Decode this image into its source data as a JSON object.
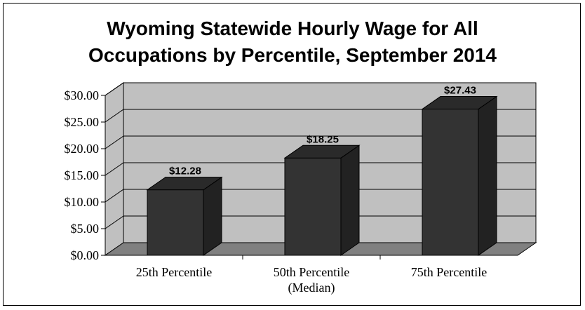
{
  "chart_data": {
    "type": "bar",
    "title_lines": [
      "Wyoming Statewide Hourly Wage for All",
      "Occupations by Percentile, September 2014"
    ],
    "categories": [
      [
        "25th Percentile"
      ],
      [
        "50th Percentile",
        "(Median)"
      ],
      [
        "75th Percentile"
      ]
    ],
    "values": [
      12.28,
      18.25,
      27.43
    ],
    "data_labels": [
      "$12.28",
      "$18.25",
      "$27.43"
    ],
    "yticks": [
      "$0.00",
      "$5.00",
      "$10.00",
      "$15.00",
      "$20.00",
      "$25.00",
      "$30.00"
    ],
    "ylim": [
      0,
      30
    ],
    "grid": true,
    "legend": "none",
    "colors": {
      "bar_front": "#333333",
      "bar_side": "#222222",
      "bar_top": "#2a2a2a",
      "wall": "#c0c0c0",
      "floor": "#808080",
      "side_wall": "#c0c0c0"
    }
  }
}
